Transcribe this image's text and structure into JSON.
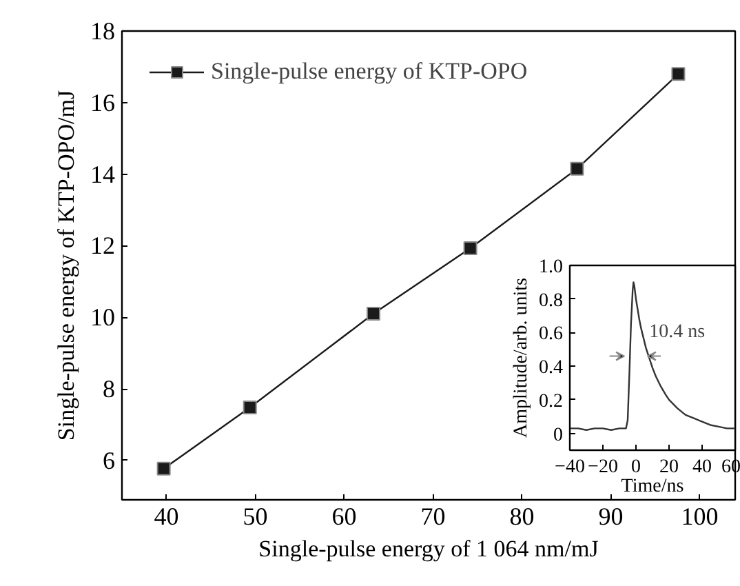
{
  "chart_data": [
    {
      "type": "line",
      "xlabel": "Single-pulse energy of 1 064 nm/mJ",
      "ylabel": "Single-pulse energy of KTP-OPO/mJ",
      "x": [
        39.7,
        49.4,
        63.3,
        74.2,
        86.2,
        97.6
      ],
      "series": [
        {
          "name": "Single-pulse energy of KTP-OPO",
          "color": "#1a1a1a",
          "values": [
            5.77,
            7.48,
            10.1,
            11.93,
            14.15,
            16.8
          ]
        }
      ],
      "xlim": [
        35,
        104
      ],
      "xticks": [
        40,
        50,
        60,
        70,
        80,
        90,
        100
      ],
      "ylim": [
        4.9,
        18
      ],
      "yticks": [
        6,
        8,
        10,
        12,
        14,
        16,
        18
      ],
      "marker": "square",
      "legend": "top left",
      "grid": false
    },
    {
      "type": "line",
      "xlabel": "Time/ns",
      "ylabel": "Amplitude/arb. units",
      "x": [
        -40,
        -35,
        -30,
        -25,
        -20,
        -15,
        -10,
        -6,
        -5,
        -4,
        -3,
        -2,
        -1.5,
        -1,
        0,
        1,
        2,
        3,
        4,
        5,
        6,
        8,
        10,
        12,
        15,
        18,
        20,
        25,
        30,
        35,
        40,
        45,
        50,
        55,
        60
      ],
      "series": [
        {
          "color": "#333333",
          "values": [
            0.03,
            0.03,
            0.02,
            0.03,
            0.03,
            0.02,
            0.03,
            0.03,
            0.08,
            0.35,
            0.65,
            0.85,
            0.9,
            0.88,
            0.8,
            0.74,
            0.68,
            0.63,
            0.59,
            0.55,
            0.51,
            0.45,
            0.39,
            0.34,
            0.28,
            0.23,
            0.2,
            0.15,
            0.11,
            0.09,
            0.07,
            0.05,
            0.04,
            0.03,
            0.03
          ]
        }
      ],
      "xlim": [
        -40,
        60
      ],
      "xticks": [
        {
          "value": -40,
          "label": "−40"
        },
        {
          "value": -20,
          "label": "−20"
        },
        0,
        20,
        40,
        60
      ],
      "ylim": [
        -0.1,
        1.0
      ],
      "yticks": [
        0,
        0.2,
        0.4,
        0.6,
        0.8,
        {
          "value": 1.0,
          "label": "1.0"
        }
      ],
      "marker": "none",
      "grid": false,
      "annotations": [
        {
          "text": "10.4 ns",
          "x": 8,
          "y": 0.6
        }
      ]
    }
  ]
}
